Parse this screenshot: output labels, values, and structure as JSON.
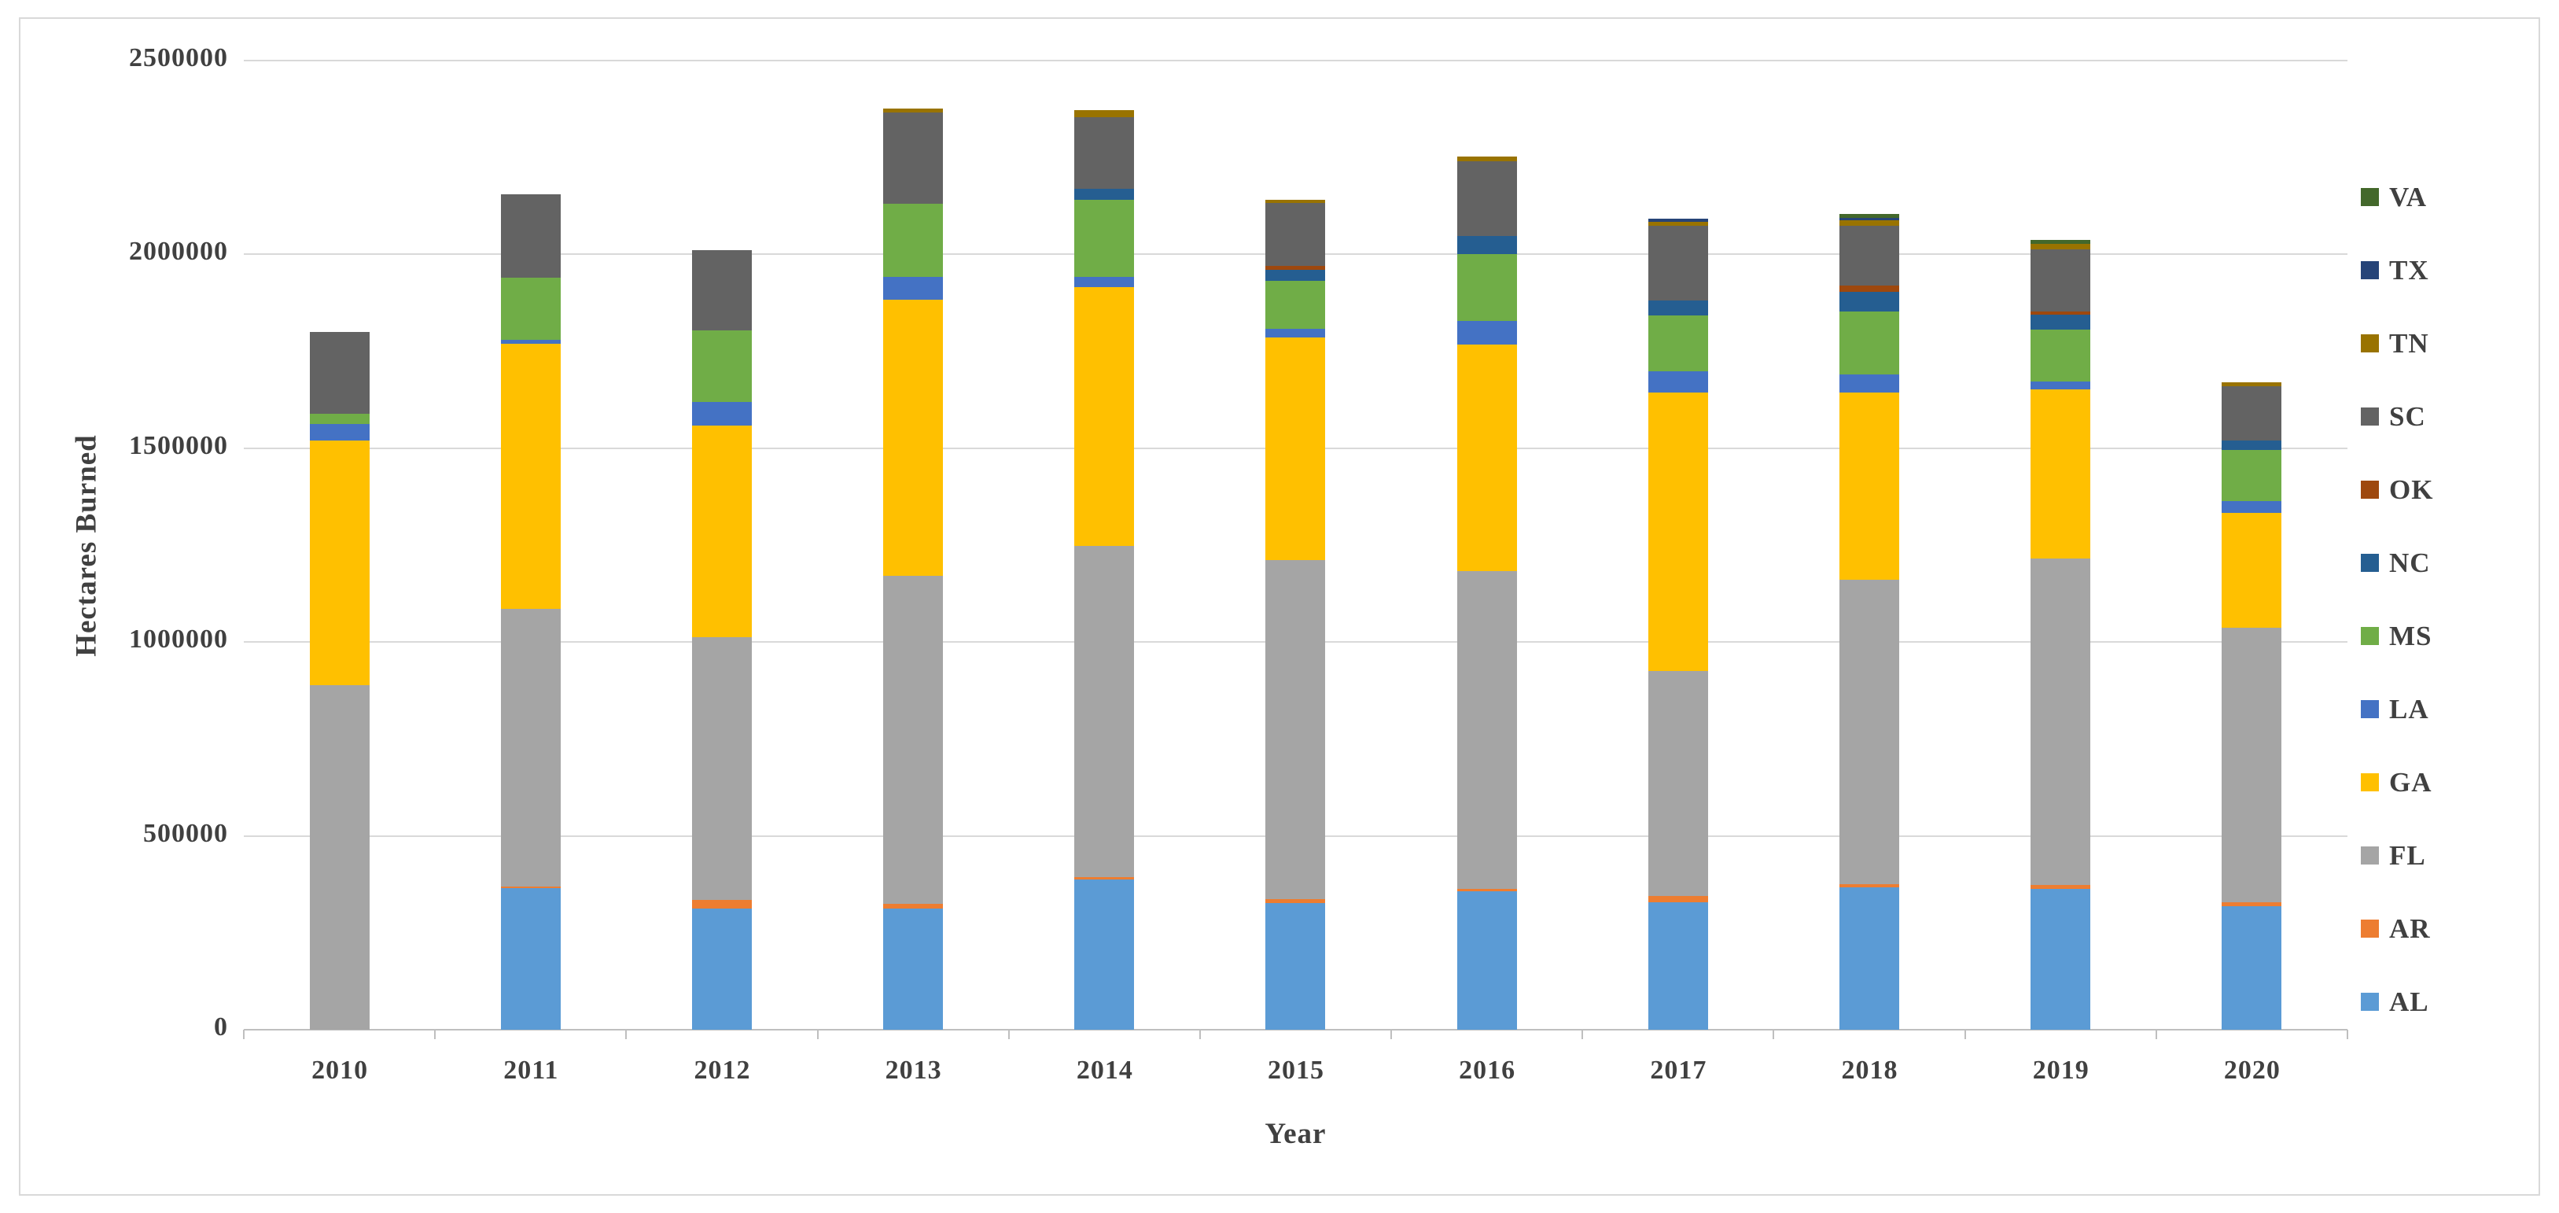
{
  "window": {
    "background": "#ffffff",
    "frame_border_color": "#d9d9d9",
    "text_color": "#404040",
    "gridline_color": "#d9d9d9",
    "axis_line_color": "#bfbfbf"
  },
  "chart_data": {
    "type": "bar",
    "stacked": true,
    "title": "",
    "xlabel": "Year",
    "ylabel": "Hectares Burned",
    "ylim": [
      0,
      2500000
    ],
    "y_ticks": [
      0,
      500000,
      1000000,
      1500000,
      2000000,
      2500000
    ],
    "y_tick_labels": [
      "0",
      "500000",
      "1000000",
      "1500000",
      "2000000",
      "2500000"
    ],
    "grid": true,
    "legend_position": "right",
    "categories": [
      "2010",
      "2011",
      "2012",
      "2013",
      "2014",
      "2015",
      "2016",
      "2017",
      "2018",
      "2019",
      "2020"
    ],
    "stack_order_bottom_to_top": [
      "AL",
      "AR",
      "FL",
      "GA",
      "LA",
      "MS",
      "NC",
      "OK",
      "SC",
      "TN",
      "TX",
      "VA"
    ],
    "series": [
      {
        "name": "AL",
        "color": "#5B9BD5",
        "values": [
          0,
          365000,
          312000,
          312000,
          387000,
          326000,
          358000,
          329000,
          368000,
          363000,
          319000
        ]
      },
      {
        "name": "AR",
        "color": "#ED7D31",
        "values": [
          0,
          4000,
          22000,
          13000,
          6000,
          10000,
          6000,
          15000,
          7000,
          10000,
          10000
        ]
      },
      {
        "name": "FL",
        "color": "#A5A5A5",
        "values": [
          888000,
          717000,
          679000,
          845000,
          855000,
          876000,
          819000,
          581000,
          785000,
          842000,
          707000
        ]
      },
      {
        "name": "GA",
        "color": "#FFC000",
        "values": [
          632000,
          684000,
          545000,
          714000,
          667000,
          573000,
          585000,
          719000,
          483000,
          436000,
          297000
        ]
      },
      {
        "name": "LA",
        "color": "#4472C4",
        "values": [
          43000,
          9000,
          62000,
          58000,
          26000,
          24000,
          61000,
          54000,
          47000,
          22000,
          30000
        ]
      },
      {
        "name": "MS",
        "color": "#70AD47",
        "values": [
          25000,
          160000,
          184000,
          189000,
          199000,
          122000,
          171000,
          145000,
          162000,
          133000,
          132000
        ]
      },
      {
        "name": "NC",
        "color": "#255E91",
        "values": [
          0,
          0,
          0,
          0,
          29000,
          30000,
          47000,
          39000,
          51000,
          38000,
          24000
        ]
      },
      {
        "name": "OK",
        "color": "#9E480E",
        "values": [
          0,
          0,
          0,
          0,
          0,
          10000,
          0,
          0,
          17000,
          9000,
          0
        ]
      },
      {
        "name": "SC",
        "color": "#636363",
        "values": [
          212000,
          217000,
          208000,
          235000,
          185000,
          161000,
          194000,
          191000,
          153000,
          160000,
          140000
        ]
      },
      {
        "name": "TN",
        "color": "#997300",
        "values": [
          0,
          0,
          0,
          10000,
          19000,
          8000,
          11000,
          11000,
          16000,
          14000,
          12000
        ]
      },
      {
        "name": "TX",
        "color": "#264478",
        "values": [
          0,
          0,
          0,
          0,
          0,
          0,
          0,
          9000,
          5000,
          0,
          0
        ]
      },
      {
        "name": "VA",
        "color": "#43682B",
        "values": [
          0,
          0,
          0,
          0,
          0,
          0,
          0,
          0,
          11000,
          11000,
          0
        ]
      }
    ],
    "legend_order_top_to_bottom": [
      "VA",
      "TX",
      "TN",
      "SC",
      "OK",
      "NC",
      "MS",
      "LA",
      "GA",
      "FL",
      "AR",
      "AL"
    ]
  }
}
